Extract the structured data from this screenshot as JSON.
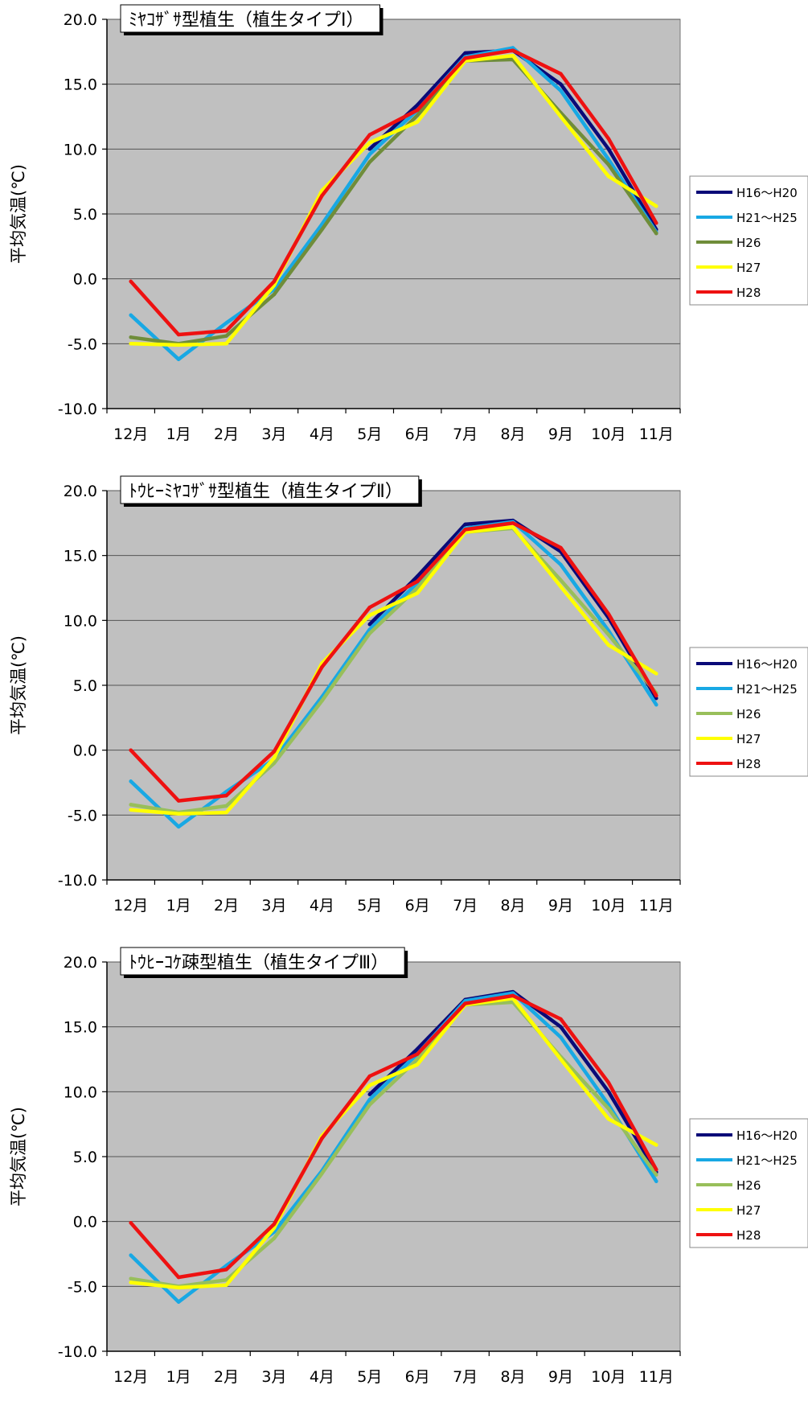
{
  "colors": {
    "plot_bg": "#c0c0c0",
    "grid": "#555555",
    "H16_H20": "#0a0a78",
    "H21_H25": "#18a8e4",
    "H26_type1": "#6f8d3a",
    "H26_type23": "#98bf5a",
    "H27": "#ffff00",
    "H28": "#ee1111"
  },
  "chart_data": [
    {
      "type": "line",
      "title": "ﾐﾔｺｻﾞｻ型植生（植生タイプⅠ）",
      "ylabel": "平均気温(℃)",
      "xlabel": "",
      "categories": [
        "12月",
        "1月",
        "2月",
        "3月",
        "4月",
        "5月",
        "6月",
        "7月",
        "8月",
        "9月",
        "10月",
        "11月"
      ],
      "y_ticks": [
        "20.0",
        "15.0",
        "10.0",
        "5.0",
        "0.0",
        "-5.0",
        "-10.0"
      ],
      "ylim": [
        -10,
        20
      ],
      "grid": true,
      "legend": "right",
      "series": [
        {
          "name": "H16～H20",
          "color_key": "H16_H20",
          "values": [
            null,
            null,
            null,
            null,
            null,
            10.0,
            13.4,
            17.4,
            17.6,
            15.0,
            10.0,
            3.8
          ]
        },
        {
          "name": "H21～H25",
          "color_key": "H21_H25",
          "values": [
            -2.8,
            -6.2,
            -3.4,
            -0.8,
            4.2,
            9.6,
            13.0,
            17.1,
            17.8,
            14.5,
            9.2,
            3.6
          ]
        },
        {
          "name": "H26",
          "color_key": "H26_type1",
          "values": [
            -4.5,
            -5.0,
            -4.4,
            -1.2,
            3.8,
            9.0,
            12.6,
            16.8,
            16.9,
            12.8,
            8.8,
            3.5
          ]
        },
        {
          "name": "H27",
          "color_key": "H27",
          "values": [
            -5.0,
            -5.1,
            -5.0,
            -0.5,
            6.8,
            10.5,
            12.1,
            16.8,
            17.2,
            12.5,
            7.9,
            5.6
          ]
        },
        {
          "name": "H28",
          "color_key": "H28",
          "values": [
            -0.2,
            -4.3,
            -4.0,
            -0.2,
            6.4,
            11.1,
            13.0,
            17.0,
            17.6,
            15.8,
            10.8,
            4.3
          ]
        }
      ]
    },
    {
      "type": "line",
      "title": "ﾄｳﾋｰﾐﾔｺｻﾞｻ型植生（植生タイプⅡ）",
      "ylabel": "平均気温(℃)",
      "xlabel": "",
      "categories": [
        "12月",
        "1月",
        "2月",
        "3月",
        "4月",
        "5月",
        "6月",
        "7月",
        "8月",
        "9月",
        "10月",
        "11月"
      ],
      "y_ticks": [
        "20.0",
        "15.0",
        "10.0",
        "5.0",
        "0.0",
        "-5.0",
        "-10.0"
      ],
      "ylim": [
        -10,
        20
      ],
      "grid": true,
      "legend": "right",
      "series": [
        {
          "name": "H16～H20",
          "color_key": "H16_H20",
          "values": [
            null,
            null,
            null,
            null,
            null,
            9.7,
            13.4,
            17.4,
            17.7,
            15.3,
            10.2,
            4.0
          ]
        },
        {
          "name": "H21～H25",
          "color_key": "H21_H25",
          "values": [
            -2.4,
            -5.9,
            -3.2,
            -0.7,
            4.1,
            9.3,
            12.9,
            17.1,
            17.6,
            14.3,
            9.2,
            3.5
          ]
        },
        {
          "name": "H26",
          "color_key": "H26_type23",
          "values": [
            -4.2,
            -4.8,
            -4.3,
            -1.0,
            3.8,
            9.0,
            12.5,
            16.8,
            17.1,
            13.1,
            8.9,
            4.4
          ]
        },
        {
          "name": "H27",
          "color_key": "H27",
          "values": [
            -4.6,
            -4.9,
            -4.8,
            -0.6,
            6.7,
            10.4,
            12.1,
            16.8,
            17.2,
            12.6,
            8.1,
            5.9
          ]
        },
        {
          "name": "H28",
          "color_key": "H28",
          "values": [
            0.0,
            -3.9,
            -3.5,
            -0.1,
            6.4,
            11.0,
            13.0,
            17.0,
            17.5,
            15.6,
            10.5,
            4.2
          ]
        }
      ]
    },
    {
      "type": "line",
      "title": "ﾄｳﾋｰｺｹ疎型植生（植生タイプⅢ）",
      "ylabel": "平均気温(℃)",
      "xlabel": "",
      "categories": [
        "12月",
        "1月",
        "2月",
        "3月",
        "4月",
        "5月",
        "6月",
        "7月",
        "8月",
        "9月",
        "10月",
        "11月"
      ],
      "y_ticks": [
        "20.0",
        "15.0",
        "10.0",
        "5.0",
        "0.0",
        "-5.0",
        "-10.0"
      ],
      "ylim": [
        -10,
        20
      ],
      "grid": true,
      "legend": "right",
      "series": [
        {
          "name": "H16～H20",
          "color_key": "H16_H20",
          "values": [
            null,
            null,
            null,
            null,
            null,
            9.8,
            13.3,
            17.1,
            17.7,
            15.0,
            10.0,
            3.8
          ]
        },
        {
          "name": "H21～H25",
          "color_key": "H21_H25",
          "values": [
            -2.6,
            -6.2,
            -3.4,
            -0.8,
            3.9,
            9.4,
            12.9,
            17.0,
            17.6,
            14.2,
            9.0,
            3.1
          ]
        },
        {
          "name": "H26",
          "color_key": "H26_type23",
          "values": [
            -4.4,
            -5.0,
            -4.5,
            -1.3,
            3.7,
            9.0,
            12.5,
            16.7,
            16.9,
            12.7,
            8.7,
            3.6
          ]
        },
        {
          "name": "H27",
          "color_key": "H27",
          "values": [
            -4.7,
            -5.1,
            -4.9,
            -0.5,
            6.6,
            10.5,
            12.1,
            16.7,
            17.2,
            12.5,
            7.9,
            5.9
          ]
        },
        {
          "name": "H28",
          "color_key": "H28",
          "values": [
            -0.1,
            -4.3,
            -3.7,
            -0.2,
            6.4,
            11.2,
            12.9,
            16.8,
            17.4,
            15.6,
            10.7,
            4.0
          ]
        }
      ]
    }
  ]
}
